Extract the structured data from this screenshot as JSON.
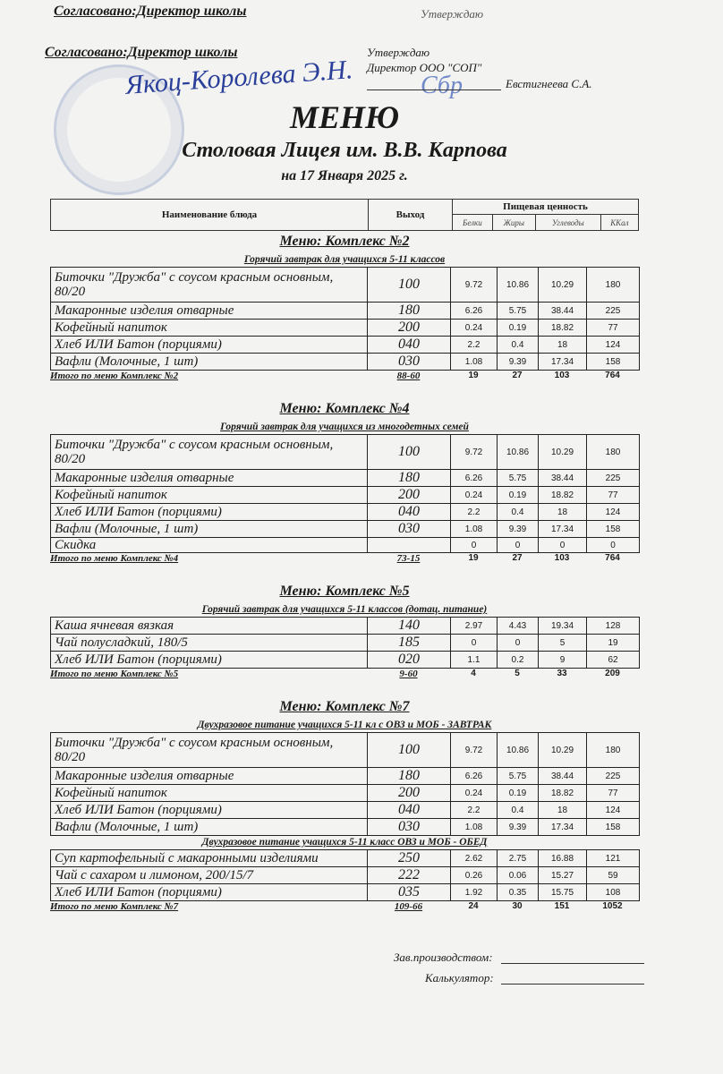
{
  "header": {
    "top_agreed": "Согласовано:Директор школы",
    "top_approve": "Утверждаю",
    "agreed": "Согласовано:Директор школы",
    "agreed_signature": "Якоц-Королева Э.Н.",
    "approve_lines": [
      "Утверждаю",
      "Директор ООО \"СОП\""
    ],
    "approver_name": "Евстигнеева С.А.",
    "title": "МЕНЮ",
    "subtitle": "Столовая Лицея им. В.В. Карпова",
    "date": "на 17 Января 2025 г."
  },
  "columns": {
    "name": "Наименование блюда",
    "output": "Выход",
    "nutrition": "Пищевая ценность",
    "protein": "Белки",
    "fat": "Жиры",
    "carbs": "Углеводы",
    "kcal": "ККал"
  },
  "sections": [
    {
      "title": "Меню: Комплекс №2",
      "groups": [
        {
          "title": "Горячий завтрак для учащихся 5-11 классов",
          "rows": [
            {
              "name": "Биточки  \"Дружба\" с соусом красным основным, 80/20",
              "output": "100",
              "values": [
                "9.72",
                "10.86",
                "10.29",
                "180"
              ]
            },
            {
              "name": "Макаронные изделия отварные",
              "output": "180",
              "values": [
                "6.26",
                "5.75",
                "38.44",
                "225"
              ]
            },
            {
              "name": "Кофейный напиток",
              "output": "200",
              "values": [
                "0.24",
                "0.19",
                "18.82",
                "77"
              ]
            },
            {
              "name": "Хлеб ИЛИ Батон (порциями)",
              "output": "040",
              "values": [
                "2.2",
                "0.4",
                "18",
                "124"
              ]
            },
            {
              "name": "Вафли (Молочные, 1 шт)",
              "output": "030",
              "values": [
                "1.08",
                "9.39",
                "17.34",
                "158"
              ]
            }
          ]
        }
      ],
      "total": {
        "label": "Итого по меню Комплекс №2",
        "price": "88-60",
        "values": [
          "19",
          "27",
          "103",
          "764"
        ]
      }
    },
    {
      "title": "Меню: Комплекс №4",
      "groups": [
        {
          "title": "Горячий завтрак для учащихся из многодетных семей",
          "rows": [
            {
              "name": "Биточки  \"Дружба\" с соусом красным основным, 80/20",
              "output": "100",
              "values": [
                "9.72",
                "10.86",
                "10.29",
                "180"
              ]
            },
            {
              "name": "Макаронные изделия отварные",
              "output": "180",
              "values": [
                "6.26",
                "5.75",
                "38.44",
                "225"
              ]
            },
            {
              "name": "Кофейный напиток",
              "output": "200",
              "values": [
                "0.24",
                "0.19",
                "18.82",
                "77"
              ]
            },
            {
              "name": "Хлеб ИЛИ Батон (порциями)",
              "output": "040",
              "values": [
                "2.2",
                "0.4",
                "18",
                "124"
              ]
            },
            {
              "name": "Вафли (Молочные, 1 шт)",
              "output": "030",
              "values": [
                "1.08",
                "9.39",
                "17.34",
                "158"
              ]
            },
            {
              "name": "Скидка",
              "output": "",
              "values": [
                "0",
                "0",
                "0",
                "0"
              ]
            }
          ]
        }
      ],
      "total": {
        "label": "Итого по меню Комплекс №4",
        "price": "73-15",
        "values": [
          "19",
          "27",
          "103",
          "764"
        ]
      }
    },
    {
      "title": "Меню: Комплекс №5",
      "groups": [
        {
          "title": "Горячий завтрак для учащихся 5-11 классов (дотац. питание)",
          "rows": [
            {
              "name": "Каша ячневая вязкая",
              "output": "140",
              "values": [
                "2.97",
                "4.43",
                "19.34",
                "128"
              ]
            },
            {
              "name": "Чай полусладкий, 180/5",
              "output": "185",
              "values": [
                "0",
                "0",
                "5",
                "19"
              ]
            },
            {
              "name": "Хлеб ИЛИ Батон (порциями)",
              "output": "020",
              "values": [
                "1.1",
                "0.2",
                "9",
                "62"
              ]
            }
          ]
        }
      ],
      "total": {
        "label": "Итого по меню Комплекс №5",
        "price": "9-60",
        "values": [
          "4",
          "5",
          "33",
          "209"
        ]
      }
    },
    {
      "title": "Меню: Комплекс №7",
      "groups": [
        {
          "title": "Двухразовое питание учащихся 5-11 кл с  ОВЗ и МОБ - ЗАВТРАК",
          "rows": [
            {
              "name": "Биточки  \"Дружба\" с соусом красным основным, 80/20",
              "output": "100",
              "values": [
                "9.72",
                "10.86",
                "10.29",
                "180"
              ]
            },
            {
              "name": "Макаронные изделия отварные",
              "output": "180",
              "values": [
                "6.26",
                "5.75",
                "38.44",
                "225"
              ]
            },
            {
              "name": "Кофейный напиток",
              "output": "200",
              "values": [
                "0.24",
                "0.19",
                "18.82",
                "77"
              ]
            },
            {
              "name": "Хлеб ИЛИ Батон (порциями)",
              "output": "040",
              "values": [
                "2.2",
                "0.4",
                "18",
                "124"
              ]
            },
            {
              "name": "Вафли (Молочные, 1 шт)",
              "output": "030",
              "values": [
                "1.08",
                "9.39",
                "17.34",
                "158"
              ]
            }
          ]
        },
        {
          "title": "Двухразовое питание учащихся 5-11 класс ОВЗ и МОБ - ОБЕД",
          "rows": [
            {
              "name": "Суп картофельный с макаронными изделиями",
              "output": "250",
              "values": [
                "2.62",
                "2.75",
                "16.88",
                "121"
              ]
            },
            {
              "name": "Чай с сахаром и лимоном, 200/15/7",
              "output": "222",
              "values": [
                "0.26",
                "0.06",
                "15.27",
                "59"
              ]
            },
            {
              "name": "Хлеб ИЛИ Батон (порциями)",
              "output": "035",
              "values": [
                "1.92",
                "0.35",
                "15.75",
                "108"
              ]
            }
          ]
        }
      ],
      "total": {
        "label": "Итого по меню Комплекс №7",
        "price": "109-66",
        "values": [
          "24",
          "30",
          "151",
          "1052"
        ]
      }
    }
  ],
  "footer": {
    "production": "Зав.производством:",
    "calculator": "Калькулятор:"
  }
}
